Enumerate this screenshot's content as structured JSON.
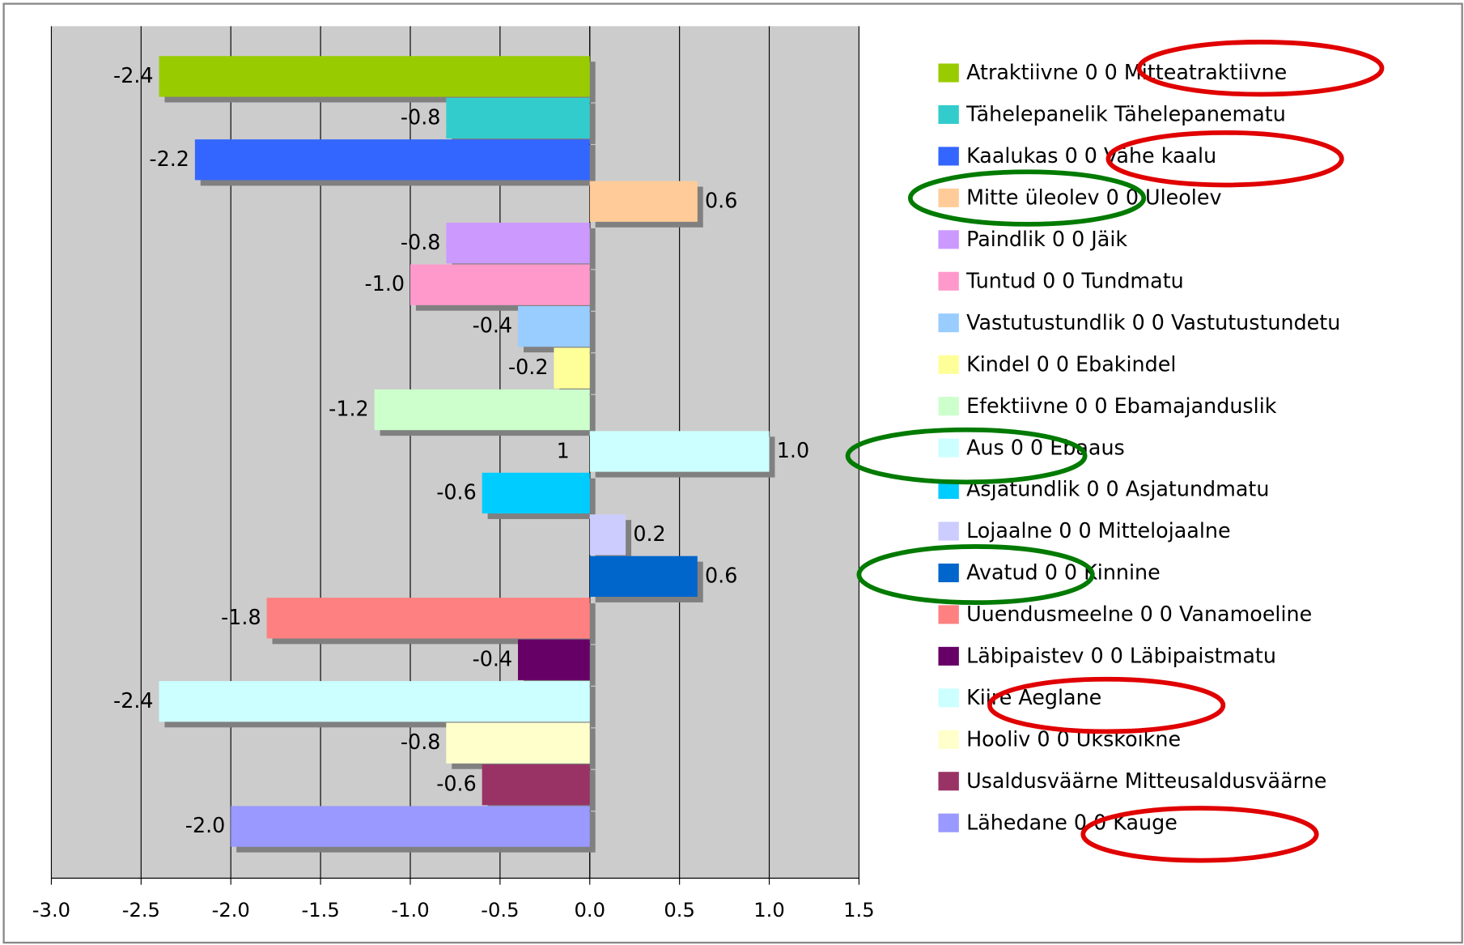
{
  "chart_data": {
    "type": "bar",
    "orientation": "horizontal",
    "series": [
      {
        "name": "Atraktiivne 0 0 Mitteatraktiivne",
        "color": "#99cc00",
        "values": [
          -2.4
        ],
        "value_labels": [
          "-2.4"
        ]
      },
      {
        "name": "Tähelepanelik Tähelepanematu",
        "color": "#33cccc",
        "values": [
          -0.8
        ],
        "value_labels": [
          "-0.8"
        ]
      },
      {
        "name": "Kaalukas 0 0 Vähe kaalu",
        "color": "#3366ff",
        "values": [
          -2.2
        ],
        "value_labels": [
          "-2.2"
        ]
      },
      {
        "name": "Mitte üleolev 0 0 Uleolev",
        "color": "#ffcc99",
        "values": [
          0.6
        ],
        "value_labels": [
          "0.6"
        ]
      },
      {
        "name": "Paindlik  0 0 Jäik",
        "color": "#cc99ff",
        "values": [
          -0.8
        ],
        "value_labels": [
          "-0.8"
        ]
      },
      {
        "name": "Tuntud 0 0 Tundmatu",
        "color": "#ff99cc",
        "values": [
          -1.0
        ],
        "value_labels": [
          "-1.0"
        ]
      },
      {
        "name": "Vastutustundlik 0 0 Vastutustundetu",
        "color": "#99ccff",
        "values": [
          -0.4
        ],
        "value_labels": [
          "-0.4"
        ]
      },
      {
        "name": "Kindel 0 0 Ebakindel",
        "color": "#ffff99",
        "values": [
          -0.2
        ],
        "value_labels": [
          "-0.2"
        ]
      },
      {
        "name": "Efektiivne 0 0 Ebamajanduslik",
        "color": "#ccffcc",
        "values": [
          -1.2
        ],
        "value_labels": [
          "-1.2"
        ]
      },
      {
        "name": "Aus 0 0 Ebaaus",
        "color": "#ccffff",
        "values": [
          1.0
        ],
        "value_labels": [
          "1.0"
        ]
      },
      {
        "name": "Asjatundlik 0 0 Asjatundmatu",
        "color": "#00ccff",
        "values": [
          -0.6
        ],
        "value_labels": [
          "-0.6"
        ]
      },
      {
        "name": "Lojaalne 0 0 Mittelojaalne",
        "color": "#ccccff",
        "values": [
          0.2
        ],
        "value_labels": [
          "0.2"
        ]
      },
      {
        "name": "Avatud 0 0 Kinnine",
        "color": "#0066cc",
        "values": [
          0.6
        ],
        "value_labels": [
          "0.6"
        ]
      },
      {
        "name": "Uuendusmeelne 0 0 Vanamoeline",
        "color": "#ff8080",
        "values": [
          -1.8
        ],
        "value_labels": [
          "-1.8"
        ]
      },
      {
        "name": "Läbipaistev 0 0 Läbipaistmatu",
        "color": "#660066",
        "values": [
          -0.4
        ],
        "value_labels": [
          "-0.4"
        ]
      },
      {
        "name": "Kiire Aeglane",
        "color": "#ccffff",
        "values": [
          -2.4
        ],
        "value_labels": [
          "-2.4"
        ]
      },
      {
        "name": "Hooliv 0 0 Ukskõikne",
        "color": "#ffffcc",
        "values": [
          -0.8
        ],
        "value_labels": [
          "-0.8"
        ]
      },
      {
        "name": "Usaldusväärne Mitteusaldusväärne",
        "color": "#993366",
        "values": [
          -0.6
        ],
        "value_labels": [
          "-0.6"
        ]
      },
      {
        "name": "Lähedane 0 0 Kauge",
        "color": "#9999ff",
        "values": [
          -2.0
        ],
        "value_labels": [
          "-2.0"
        ]
      }
    ],
    "annotations": [
      "1"
    ],
    "xlim": [
      -3,
      1.5
    ],
    "xticks": [
      {
        "value": -3,
        "label": "-3.0"
      },
      -2.5,
      {
        "value": -2,
        "label": "-2.0"
      },
      -1.5,
      {
        "value": -1,
        "label": "-1.0"
      },
      -0.5,
      {
        "value": 0,
        "label": "0.0"
      },
      0.5,
      {
        "value": 1,
        "label": "1.0"
      },
      1.5
    ],
    "grid": true,
    "legend": "right"
  }
}
